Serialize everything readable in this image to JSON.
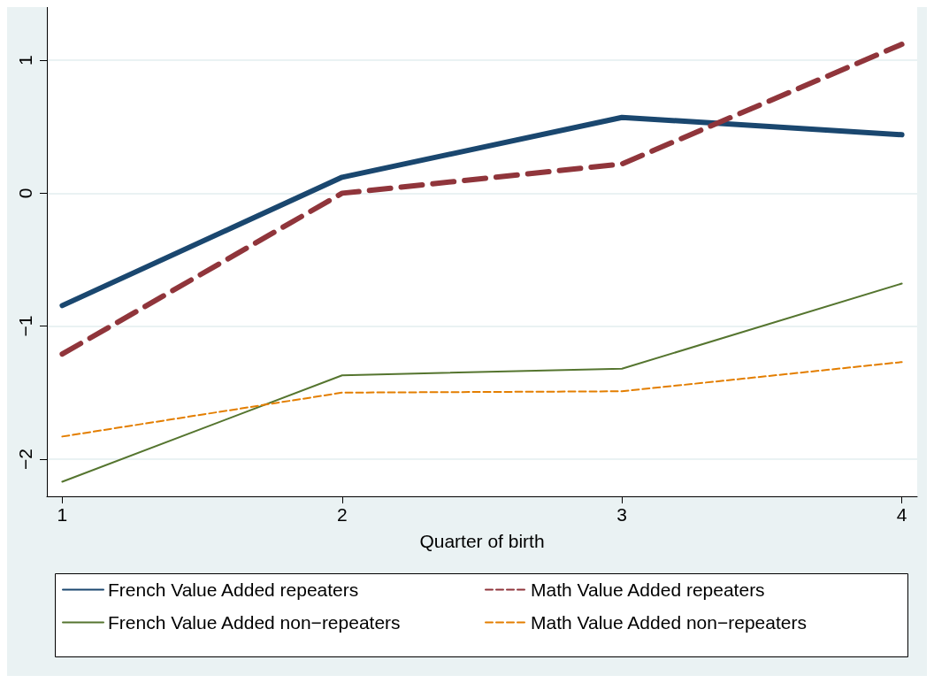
{
  "chart_data": {
    "type": "line",
    "xlabel": "Quarter of birth",
    "x": [
      1,
      2,
      3,
      4
    ],
    "xlim": [
      0.945,
      4.055
    ],
    "xticks": [
      1,
      2,
      3,
      4
    ],
    "ylim": [
      -2.28,
      1.4
    ],
    "yticks": [
      {
        "value": -2,
        "label": "−2"
      },
      {
        "value": -1,
        "label": "−1"
      },
      0,
      1
    ],
    "grid": "y",
    "legend": "bottom",
    "marker": "none",
    "series": [
      {
        "name": "French Value Added repeaters",
        "color": "#1a476f",
        "line_style": "solid",
        "values": [
          -0.845,
          0.12,
          0.57,
          0.44
        ]
      },
      {
        "name": "Math Value Added repeaters",
        "color": "#90353b",
        "line_style": "dashed",
        "values": [
          -1.21,
          0.0,
          0.22,
          1.12
        ]
      },
      {
        "name": "French Value Added non−repeaters",
        "color": "#55752f",
        "line_style": "solid",
        "values": [
          -2.17,
          -1.37,
          -1.32,
          -0.68
        ]
      },
      {
        "name": "Math Value Added non−repeaters",
        "color": "#e37e00",
        "line_style": "dashed",
        "values": [
          -1.83,
          -1.5,
          -1.49,
          -1.27
        ]
      }
    ]
  }
}
